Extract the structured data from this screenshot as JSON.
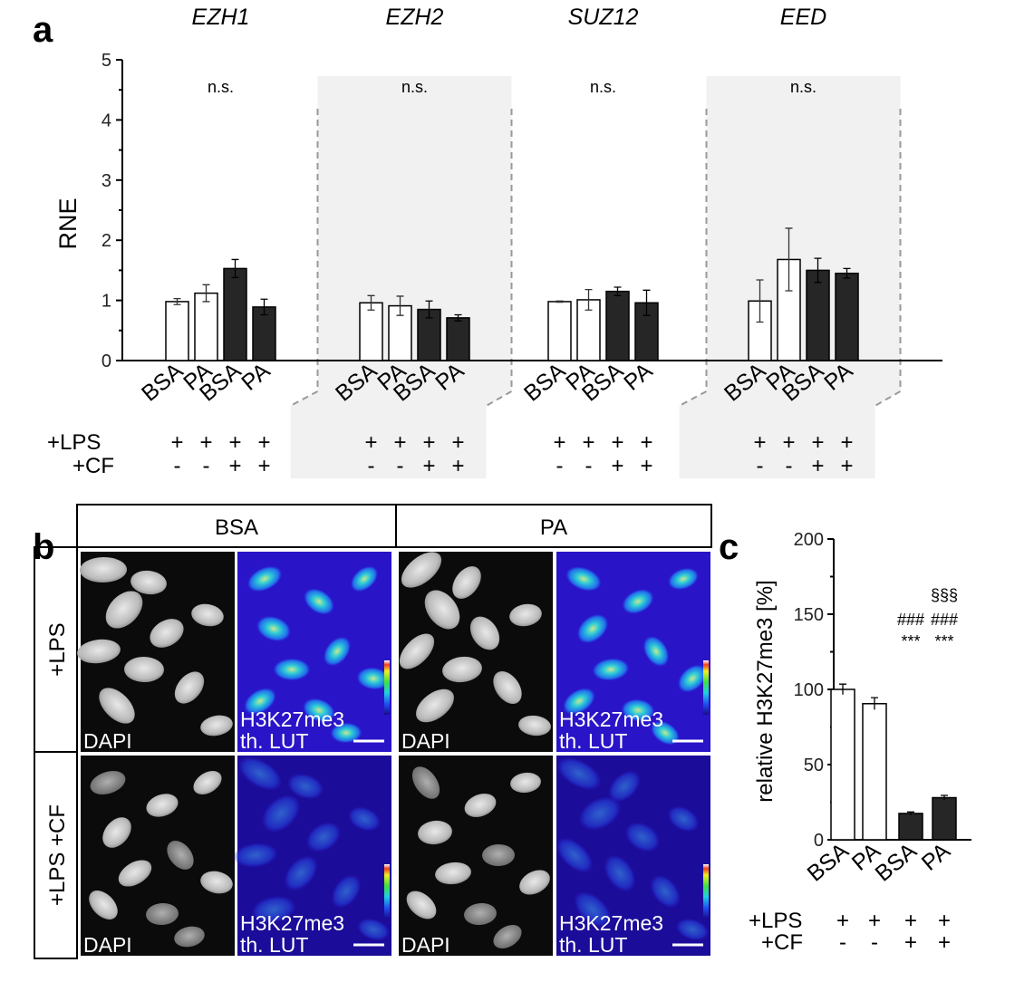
{
  "panels": {
    "a": "a",
    "b": "b",
    "c": "c"
  },
  "chart_data": [
    {
      "type": "bar",
      "ylabel": "RNE",
      "ylim": [
        0,
        5
      ],
      "yticks": [
        0,
        1,
        2,
        3,
        4,
        5
      ],
      "groups": [
        {
          "name": "EZH1",
          "ns": "n.s.",
          "values": [
            0.98,
            1.12,
            1.53,
            0.89
          ],
          "errors": [
            0.05,
            0.14,
            0.15,
            0.13
          ],
          "shaded": false
        },
        {
          "name": "EZH2",
          "ns": "n.s.",
          "values": [
            0.96,
            0.91,
            0.85,
            0.71
          ],
          "errors": [
            0.12,
            0.16,
            0.14,
            0.05
          ],
          "shaded": true
        },
        {
          "name": "SUZ12",
          "ns": "n.s.",
          "values": [
            0.98,
            1.01,
            1.15,
            0.96
          ],
          "errors": [
            0.01,
            0.17,
            0.07,
            0.21
          ],
          "shaded": false
        },
        {
          "name": "EED",
          "ns": "n.s.",
          "values": [
            0.99,
            1.68,
            1.5,
            1.45
          ],
          "errors": [
            0.35,
            0.52,
            0.2,
            0.08
          ],
          "shaded": true
        }
      ],
      "categories": [
        "BSA",
        "PA",
        "BSA",
        "PA"
      ],
      "fills": [
        "white",
        "white",
        "black",
        "black"
      ],
      "conditions": [
        {
          "label": "+LPS",
          "signs": [
            "+",
            "+",
            "+",
            "+"
          ]
        },
        {
          "label": "+CF",
          "signs": [
            "-",
            "-",
            "+",
            "+"
          ]
        }
      ]
    },
    {
      "type": "bar",
      "ylabel": "relative H3K27me3 [%]",
      "ylim": [
        0,
        200
      ],
      "yticks": [
        0,
        50,
        100,
        150,
        200
      ],
      "categories": [
        "BSA",
        "PA",
        "BSA",
        "PA"
      ],
      "values": [
        100,
        90.5,
        17.5,
        28
      ],
      "errors": [
        3.5,
        4,
        1,
        1.5
      ],
      "fills": [
        "white",
        "white",
        "black",
        "black"
      ],
      "significance": [
        {
          "label": "§§§",
          "bar": 3
        },
        {
          "label": "###",
          "bar": 2
        },
        {
          "label": "###",
          "bar": 3
        },
        {
          "label": "***",
          "bar": 2
        },
        {
          "label": "***",
          "bar": 3
        }
      ],
      "conditions": [
        {
          "label": "+LPS",
          "signs": [
            "+",
            "+",
            "+",
            "+"
          ]
        },
        {
          "label": "+CF",
          "signs": [
            "-",
            "-",
            "+",
            "+"
          ]
        }
      ]
    }
  ],
  "micrographs": {
    "columns": [
      "BSA",
      "PA"
    ],
    "rows": [
      "+LPS",
      "+LPS +CF"
    ],
    "labels": {
      "dapi": "DAPI",
      "stain": "H3K27me3",
      "lut": "th. LUT"
    }
  },
  "colors": {
    "shade": "#f1f1f1",
    "dark_bar": "#262626",
    "lut_blue": "#2a14c8",
    "lut_dark": "#1c0c9a"
  }
}
